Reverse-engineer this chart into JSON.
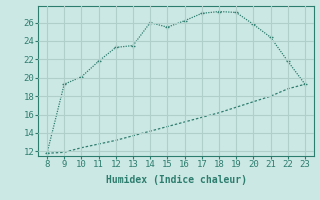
{
  "x": [
    8,
    9,
    10,
    11,
    12,
    13,
    14,
    15,
    16,
    17,
    18,
    19,
    20,
    21,
    22,
    23
  ],
  "y_upper": [
    11.8,
    19.3,
    20.1,
    21.8,
    23.3,
    23.5,
    26.0,
    25.5,
    26.2,
    27.0,
    27.2,
    27.1,
    25.8,
    24.4,
    21.8,
    19.3
  ],
  "y_lower": [
    11.8,
    11.9,
    12.4,
    12.8,
    13.2,
    13.7,
    14.2,
    14.7,
    15.2,
    15.7,
    16.2,
    16.8,
    17.4,
    18.0,
    18.8,
    19.3
  ],
  "line_color": "#2d7d6e",
  "bg_color": "#cce8e4",
  "grid_color": "#b0ceca",
  "xlabel": "Humidex (Indice chaleur)",
  "xlim": [
    7.5,
    23.5
  ],
  "ylim": [
    11.5,
    27.8
  ],
  "xticks": [
    8,
    9,
    10,
    11,
    12,
    13,
    14,
    15,
    16,
    17,
    18,
    19,
    20,
    21,
    22,
    23
  ],
  "yticks": [
    12,
    14,
    16,
    18,
    20,
    22,
    24,
    26
  ],
  "label_fontsize": 7,
  "tick_fontsize": 6.5
}
